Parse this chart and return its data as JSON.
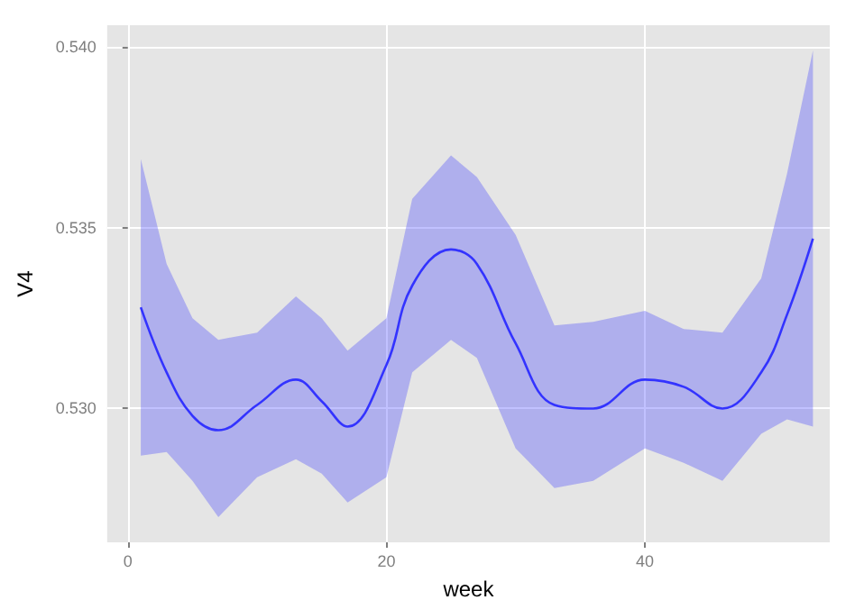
{
  "chart_data": {
    "type": "line",
    "xlabel": "week",
    "ylabel": "V4",
    "xlim": [
      -1.6,
      54.3
    ],
    "ylim": [
      0.5263,
      0.5406
    ],
    "xticks": [
      0,
      20,
      40
    ],
    "yticks": [
      {
        "value": 0.53,
        "label": "0.530"
      },
      {
        "value": 0.535,
        "label": "0.535"
      },
      {
        "value": 0.54,
        "label": "0.540"
      }
    ],
    "grid": true,
    "marker": "none",
    "line_style": "solid",
    "x": [
      1,
      3,
      5,
      7,
      10,
      13,
      15,
      17,
      20,
      22,
      25,
      27,
      30,
      33,
      36,
      40,
      43,
      46,
      49,
      51,
      53
    ],
    "series": [
      {
        "color": "#3333ff",
        "values": [
          0.5328,
          0.531,
          0.5298,
          0.5294,
          0.5301,
          0.5308,
          0.5302,
          0.5295,
          0.5312,
          0.5334,
          0.5344,
          0.534,
          0.5318,
          0.5301,
          0.53,
          0.5308,
          0.5306,
          0.53,
          0.531,
          0.5326,
          0.5347
        ],
        "upper": [
          0.5369,
          0.534,
          0.5325,
          0.5319,
          0.5321,
          0.5331,
          0.5325,
          0.5316,
          0.5325,
          0.5358,
          0.537,
          0.5364,
          0.5348,
          0.5323,
          0.5324,
          0.5327,
          0.5322,
          0.5321,
          0.5336,
          0.5365,
          0.5399
        ],
        "lower": [
          0.5287,
          0.5288,
          0.528,
          0.527,
          0.5281,
          0.5286,
          0.5282,
          0.5274,
          0.5281,
          0.531,
          0.5319,
          0.5314,
          0.5289,
          0.5278,
          0.528,
          0.5289,
          0.5285,
          0.528,
          0.5293,
          0.5297,
          0.5295
        ]
      }
    ]
  }
}
